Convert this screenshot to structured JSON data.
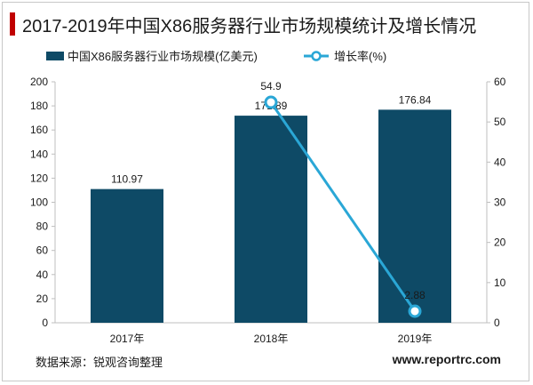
{
  "header": {
    "title": "2017-2019年中国X86服务器行业市场规模统计及增长情况"
  },
  "footer": {
    "source": "数据来源：锐观咨询整理",
    "website": "www.reportrc.com"
  },
  "colors": {
    "bar": "#0e4a66",
    "line": "#2aa7d6",
    "marker_fill": "#ffffff",
    "title_accent": "#c00000"
  },
  "chart_data": {
    "type": "bar",
    "title": "",
    "categories": [
      "2017年",
      "2018年",
      "2019年"
    ],
    "series": [
      {
        "name": "中国X86服务器行业市场规模(亿美元)",
        "type": "bar",
        "axis": "left",
        "values": [
          110.97,
          171.89,
          176.84
        ],
        "labels": [
          "110.97",
          "171.89",
          "176.84"
        ]
      },
      {
        "name": "增长率(%)",
        "type": "line",
        "axis": "right",
        "values": [
          null,
          54.9,
          2.88
        ],
        "labels": [
          "",
          "54.9",
          "2.88"
        ]
      }
    ],
    "y_left": {
      "min": 0,
      "max": 200,
      "ticks": [
        "0",
        "20",
        "40",
        "60",
        "80",
        "100",
        "120",
        "140",
        "160",
        "180",
        "200"
      ]
    },
    "y_right": {
      "min": 0,
      "max": 60,
      "ticks": [
        "0",
        "10",
        "20",
        "30",
        "40",
        "50",
        "60"
      ]
    },
    "grid": false,
    "legend_position": "top"
  }
}
